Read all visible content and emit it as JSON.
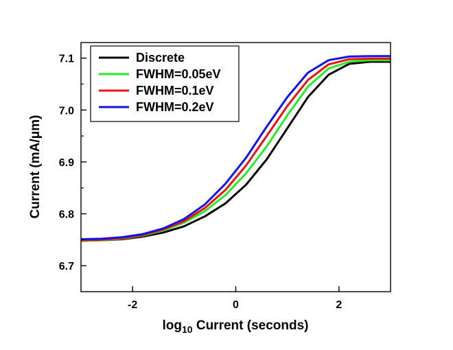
{
  "chart_data": {
    "type": "line",
    "xlabel_main": "log",
    "xlabel_sub": "10",
    "xlabel_rest": " Current (seconds)",
    "ylabel": "Current (mA/μm)",
    "xlim": [
      -3,
      3
    ],
    "ylim": [
      6.65,
      7.13
    ],
    "xticks": [
      -2,
      0,
      2
    ],
    "xtick_labels": [
      "-2",
      "0",
      "2"
    ],
    "yticks": [
      6.7,
      6.8,
      6.9,
      7.0,
      7.1
    ],
    "ytick_labels": [
      "6.7",
      "6.8",
      "6.9",
      "7.0",
      "7.1"
    ],
    "grid": false,
    "legend_position": "top-left",
    "series": [
      {
        "name": "Discrete",
        "color": "#000000",
        "x": [
          -3,
          -2.6,
          -2.2,
          -1.8,
          -1.4,
          -1.0,
          -0.6,
          -0.2,
          0.2,
          0.6,
          1.0,
          1.4,
          1.8,
          2.2,
          2.6,
          3.0
        ],
        "y": [
          6.748,
          6.749,
          6.751,
          6.756,
          6.764,
          6.776,
          6.795,
          6.82,
          6.856,
          6.905,
          6.965,
          7.025,
          7.068,
          7.089,
          7.093,
          7.093
        ]
      },
      {
        "name": "FWHM=0.05eV",
        "color": "#22ee22",
        "x": [
          -3,
          -2.6,
          -2.2,
          -1.8,
          -1.4,
          -1.0,
          -0.6,
          -0.2,
          0.2,
          0.6,
          1.0,
          1.4,
          1.8,
          2.2,
          2.6,
          3.0
        ],
        "y": [
          6.748,
          6.749,
          6.752,
          6.758,
          6.768,
          6.783,
          6.805,
          6.836,
          6.878,
          6.93,
          6.99,
          7.045,
          7.08,
          7.093,
          7.096,
          7.096
        ]
      },
      {
        "name": "FWHM=0.1eV",
        "color": "#ee1111",
        "x": [
          -3,
          -2.6,
          -2.2,
          -1.8,
          -1.4,
          -1.0,
          -0.6,
          -0.2,
          0.2,
          0.6,
          1.0,
          1.4,
          1.8,
          2.2,
          2.6,
          3.0
        ],
        "y": [
          6.749,
          6.75,
          6.753,
          6.759,
          6.77,
          6.786,
          6.811,
          6.846,
          6.893,
          6.95,
          7.008,
          7.058,
          7.088,
          7.098,
          7.099,
          7.099
        ]
      },
      {
        "name": "FWHM=0.2eV",
        "color": "#1111ee",
        "x": [
          -3,
          -2.6,
          -2.2,
          -1.8,
          -1.4,
          -1.0,
          -0.6,
          -0.2,
          0.2,
          0.6,
          1.0,
          1.4,
          1.8,
          2.2,
          2.6,
          3.0
        ],
        "y": [
          6.751,
          6.752,
          6.755,
          6.761,
          6.772,
          6.79,
          6.818,
          6.858,
          6.908,
          6.968,
          7.025,
          7.072,
          7.096,
          7.103,
          7.104,
          7.104
        ]
      }
    ]
  }
}
